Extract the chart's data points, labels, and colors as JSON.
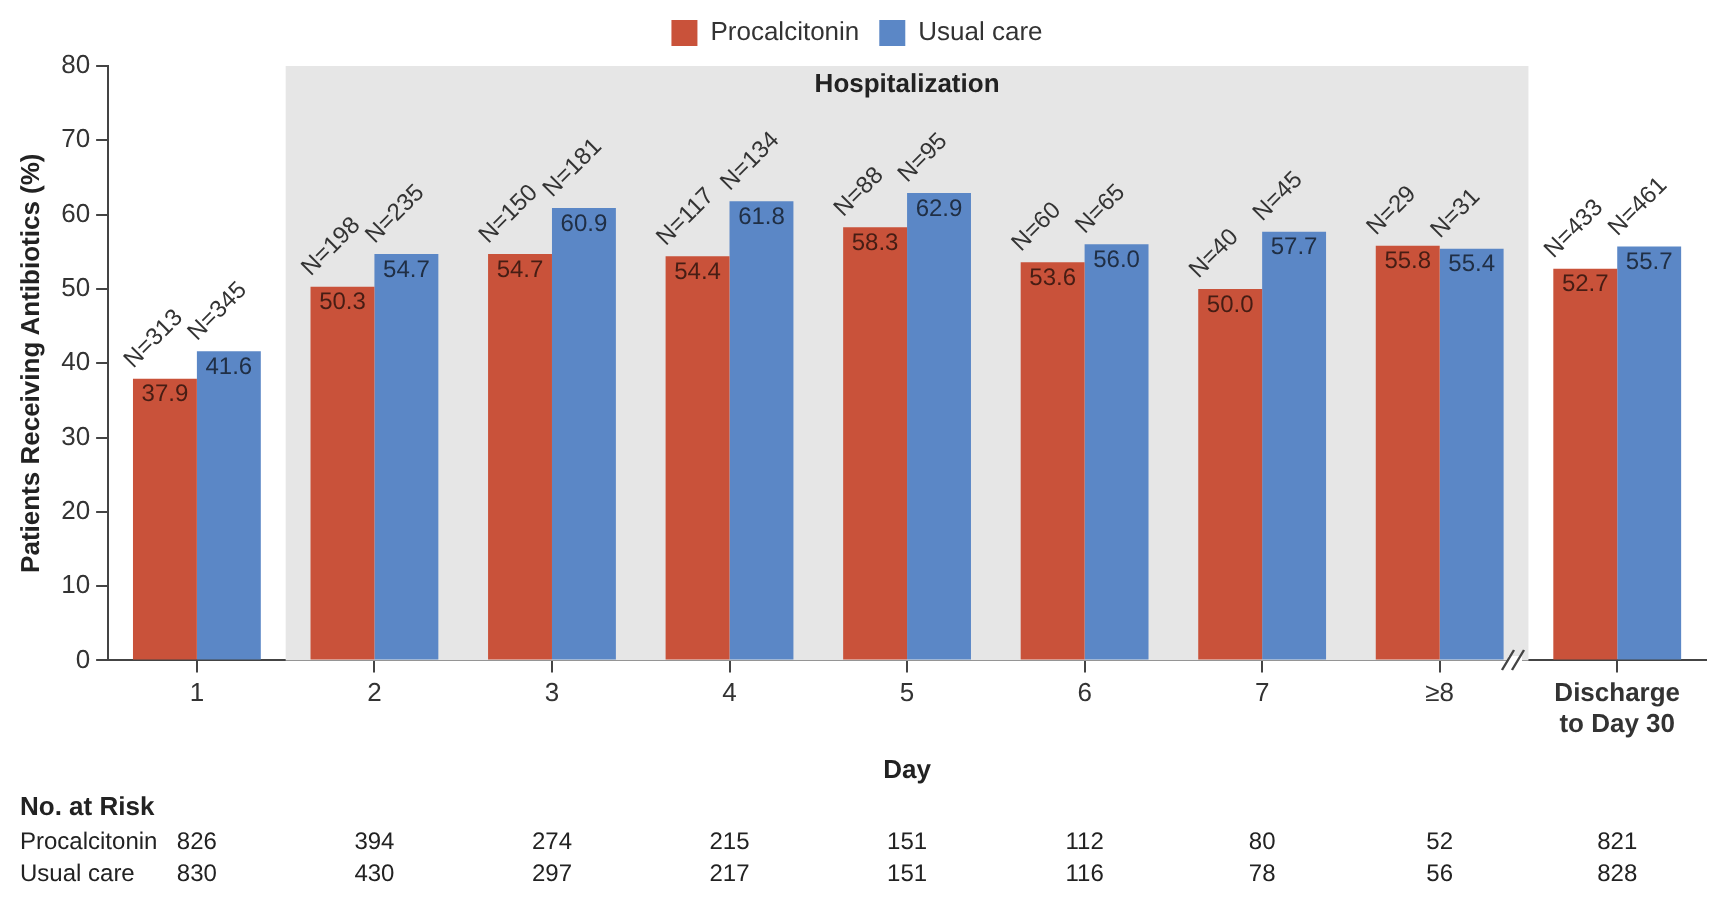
{
  "chart_data": {
    "type": "bar",
    "ylabel": "Patients Receiving Antibiotics (%)",
    "xlabel": "Day",
    "categories": [
      "1",
      "2",
      "3",
      "4",
      "5",
      "6",
      "7",
      "≥8",
      "Discharge to Day 30"
    ],
    "series": [
      {
        "name": "Procalcitonin",
        "color": "#c9523a",
        "values": [
          37.9,
          50.3,
          54.7,
          54.4,
          58.3,
          53.6,
          50.0,
          55.8,
          52.7
        ],
        "value_labels": [
          "37.9",
          "50.3",
          "54.7",
          "54.4",
          "58.3",
          "53.6",
          "50.0",
          "55.8",
          "52.7"
        ]
      },
      {
        "name": "Usual care",
        "color": "#5b87c6",
        "values": [
          41.6,
          54.7,
          60.9,
          61.8,
          62.9,
          56.0,
          57.7,
          55.4,
          55.7
        ],
        "value_labels": [
          "41.6",
          "54.7",
          "60.9",
          "61.8",
          "62.9",
          "56.0",
          "57.7",
          "55.4",
          "55.7"
        ]
      }
    ],
    "ylim": [
      0,
      80
    ],
    "yticks": [
      0,
      10,
      20,
      30,
      40,
      50,
      60,
      70,
      80
    ],
    "grid": false,
    "legend": "top",
    "bands": [
      {
        "axis": "x",
        "from": "2",
        "to": "≥8",
        "label": "Hospitalization",
        "color": "#e6e6e6"
      }
    ],
    "annotations": [
      {
        "text": "N=313",
        "x": "1",
        "y": 37.9
      },
      {
        "text": "N=345",
        "x": "1",
        "y": 41.6
      },
      {
        "text": "N=198",
        "x": "2",
        "y": 50.3
      },
      {
        "text": "N=235",
        "x": "2",
        "y": 54.7
      },
      {
        "text": "N=150",
        "x": "3",
        "y": 54.7
      },
      {
        "text": "N=181",
        "x": "3",
        "y": 60.9
      },
      {
        "text": "N=117",
        "x": "4",
        "y": 54.4
      },
      {
        "text": "N=134",
        "x": "4",
        "y": 61.8
      },
      {
        "text": "N=88",
        "x": "5",
        "y": 58.3
      },
      {
        "text": "N=95",
        "x": "5",
        "y": 62.9
      },
      {
        "text": "N=60",
        "x": "6",
        "y": 53.6
      },
      {
        "text": "N=65",
        "x": "6",
        "y": 56.0
      },
      {
        "text": "N=40",
        "x": "7",
        "y": 50.0
      },
      {
        "text": "N=45",
        "x": "7",
        "y": 57.7
      },
      {
        "text": "N=29",
        "x": "≥8",
        "y": 55.8
      },
      {
        "text": "N=31",
        "x": "≥8",
        "y": 55.4
      },
      {
        "text": "N=433",
        "x": "Discharge to Day 30",
        "y": 52.7
      },
      {
        "text": "N=461",
        "x": "Discharge to Day 30",
        "y": 55.7
      },
      "No. at Risk",
      "Procalcitonin",
      "826",
      "394",
      "274",
      "215",
      "151",
      "112",
      "80",
      "52",
      "821",
      "Usual care",
      "830",
      "430",
      "297",
      "217",
      "151",
      "116",
      "78",
      "56",
      "828"
    ]
  }
}
